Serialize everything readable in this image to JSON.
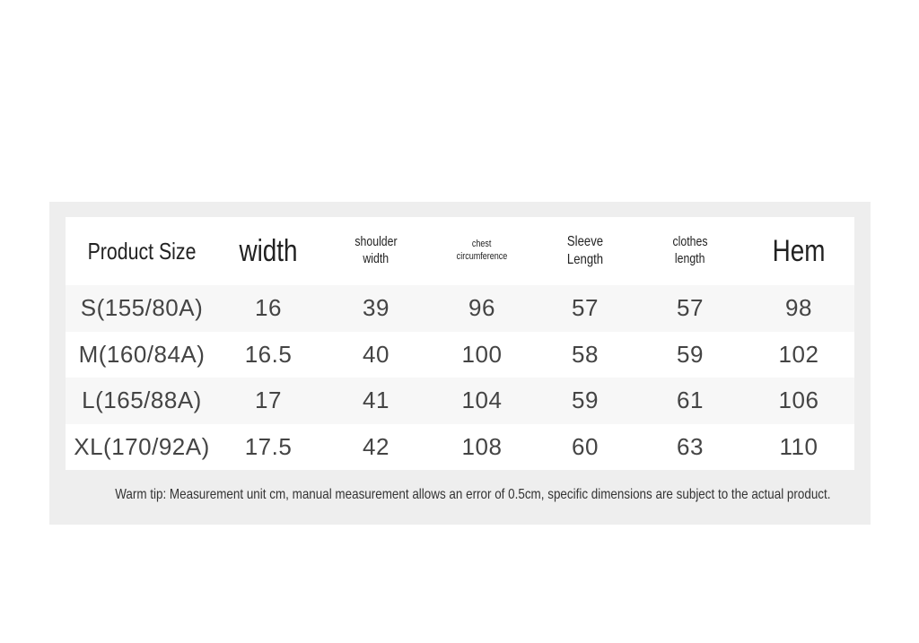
{
  "table": {
    "header": [
      [
        "Product Size"
      ],
      [
        "width"
      ],
      [
        "shoulder",
        "width"
      ],
      [
        "chest",
        "circumference"
      ],
      [
        "Sleeve",
        "Length"
      ],
      [
        "clothes",
        "length"
      ],
      [
        "Hem"
      ]
    ],
    "rows": [
      [
        "S(155/80A)",
        16,
        39,
        96,
        57,
        57,
        98
      ],
      [
        "M(160/84A)",
        16.5,
        40,
        100,
        58,
        59,
        102
      ],
      [
        "L(165/88A)",
        17,
        41,
        104,
        59,
        61,
        106
      ],
      [
        "XL(170/92A)",
        17.5,
        42,
        108,
        60,
        63,
        110
      ]
    ]
  },
  "tip": "Warm tip: Measurement unit cm, manual measurement allows an error of 0.5cm, specific dimensions are subject to the actual product."
}
